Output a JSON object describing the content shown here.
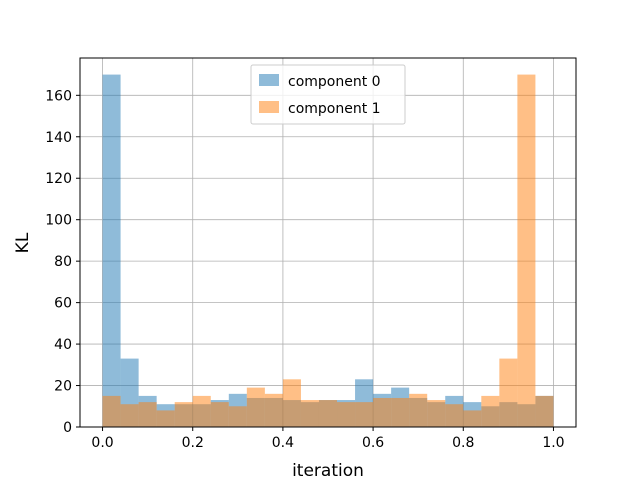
{
  "chart_data": {
    "type": "bar",
    "subtype": "overlaid-histogram",
    "title": "",
    "xlabel": "iteration",
    "ylabel": "KL",
    "xlim": [
      -0.05,
      1.05
    ],
    "ylim": [
      0,
      178
    ],
    "x_ticks": [
      0.0,
      0.2,
      0.4,
      0.6,
      0.8,
      1.0
    ],
    "x_tick_labels": [
      "0.0",
      "0.2",
      "0.4",
      "0.6",
      "0.8",
      "1.0"
    ],
    "y_ticks": [
      0,
      20,
      40,
      60,
      80,
      100,
      120,
      140,
      160
    ],
    "y_tick_labels": [
      "0",
      "20",
      "40",
      "60",
      "80",
      "100",
      "120",
      "140",
      "160"
    ],
    "grid": true,
    "legend_position": "top-center",
    "bins": {
      "start": 0.0,
      "end": 1.0,
      "count": 25
    },
    "series": [
      {
        "name": "component 0",
        "color": "#1f77b4",
        "alpha": 0.5,
        "values": [
          170,
          33,
          15,
          11,
          11,
          11,
          13,
          16,
          14,
          14,
          13,
          12,
          13,
          13,
          23,
          16,
          19,
          14,
          12,
          15,
          12,
          10,
          12,
          11,
          15
        ]
      },
      {
        "name": "component 1",
        "color": "#ff7f0e",
        "alpha": 0.5,
        "values": [
          15,
          11,
          12,
          8,
          12,
          15,
          12,
          10,
          19,
          16,
          23,
          13,
          13,
          12,
          12,
          14,
          14,
          16,
          13,
          11,
          8,
          15,
          33,
          170,
          15
        ]
      }
    ]
  }
}
